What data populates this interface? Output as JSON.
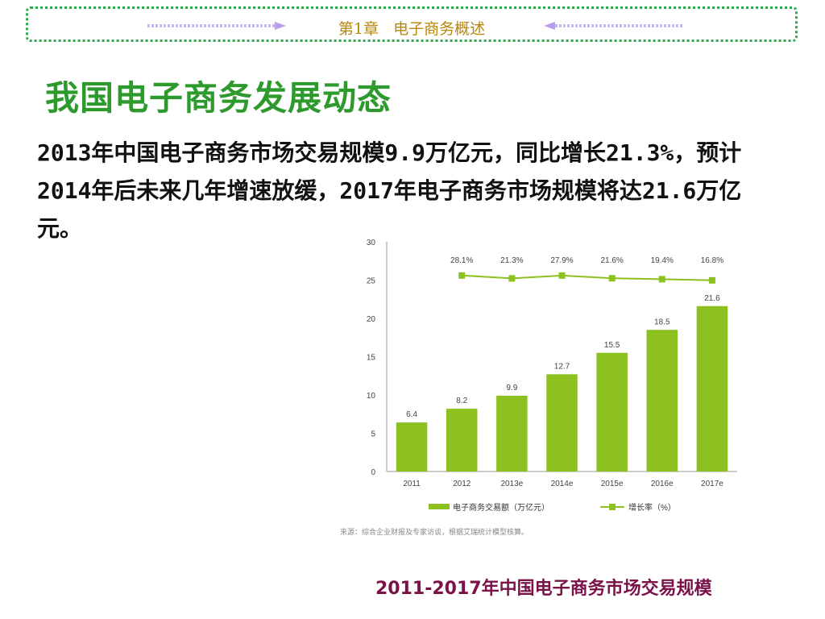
{
  "header": {
    "chapter": "第1章",
    "chapter_title": "电子商务概述"
  },
  "slide": {
    "title": "我国电子商务发展动态",
    "paragraph": "2013年中国电子商务市场交易规模9.9万亿元，同比增长21.3%，预计2014年后未来几年增速放缓，2017年电子商务市场规模将达21.6万亿元。"
  },
  "chart_data": {
    "type": "bar",
    "categories": [
      "2011",
      "2012",
      "2013e",
      "2014e",
      "2015e",
      "2016e",
      "2017e"
    ],
    "series": [
      {
        "name": "电子商务交易额（万亿元）",
        "type": "bar",
        "values": [
          6.4,
          8.2,
          9.9,
          12.7,
          15.5,
          18.5,
          21.6
        ],
        "labels": [
          "6.4",
          "8.2",
          "9.9",
          "12.7",
          "15.5",
          "18.5",
          "21.6"
        ],
        "color": "#8cc11f"
      },
      {
        "name": "增长率（%）",
        "type": "line",
        "x": [
          "2012",
          "2013e",
          "2014e",
          "2015e",
          "2016e",
          "2017e"
        ],
        "values": [
          28.1,
          21.3,
          27.9,
          21.6,
          19.4,
          16.8
        ],
        "labels": [
          "28.1%",
          "21.3%",
          "27.9%",
          "21.6%",
          "19.4%",
          "16.8%"
        ],
        "color": "#8cc11f"
      }
    ],
    "ylim": [
      0,
      30
    ],
    "yticks": [
      "0",
      "5",
      "10",
      "15",
      "20",
      "25",
      "30"
    ],
    "grid": false,
    "legend_position": "bottom",
    "source_note": "来源：综合企业财报及专家访谈，根据艾瑞统计模型核算。",
    "caption": "2011-2017年中国电子商务市场交易规模"
  }
}
